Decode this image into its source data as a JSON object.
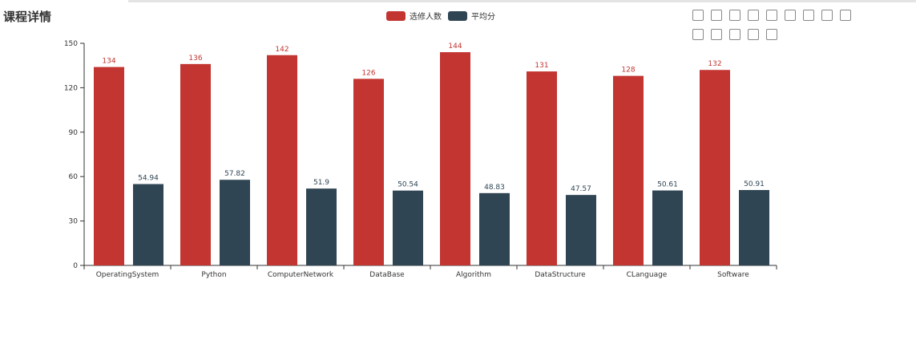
{
  "title": "课程详情",
  "legend": [
    {
      "label": "选修人数",
      "color": "#c23531"
    },
    {
      "label": "平均分",
      "color": "#2f4554"
    }
  ],
  "toolbox": [
    "download-icon",
    "refresh-icon",
    "data-view-icon",
    "zoom-icon",
    "zoom-reset-icon",
    "line-icon",
    "bar-icon",
    "stack-icon",
    "rect-select-icon",
    "polygon-select-icon",
    "keep-select-icon",
    "clear-select-icon",
    "tiled-icon",
    "brush-clear-icon"
  ],
  "chart_data": {
    "type": "bar",
    "title": "课程详情",
    "categories": [
      "OperatingSystem",
      "Python",
      "ComputerNetwork",
      "DataBase",
      "Algorithm",
      "DataStructure",
      "CLanguage",
      "Software"
    ],
    "series": [
      {
        "name": "选修人数",
        "color": "#c23531",
        "values": [
          134,
          136,
          142,
          126,
          144,
          131,
          128,
          132
        ],
        "labels": [
          "134",
          "136",
          "142",
          "126",
          "144",
          "131",
          "128",
          "132"
        ]
      },
      {
        "name": "平均分",
        "color": "#2f4554",
        "values": [
          54.94,
          57.82,
          51.9,
          50.54,
          48.83,
          47.57,
          50.61,
          50.91
        ],
        "labels": [
          "54.94",
          "57.82",
          "51.9",
          "50.54",
          "48.83",
          "47.57",
          "50.61",
          "50.91"
        ]
      }
    ],
    "yticks": [
      "0",
      "30",
      "60",
      "90",
      "120",
      "150"
    ],
    "ylim": [
      0,
      150
    ],
    "legend_position": "top"
  }
}
